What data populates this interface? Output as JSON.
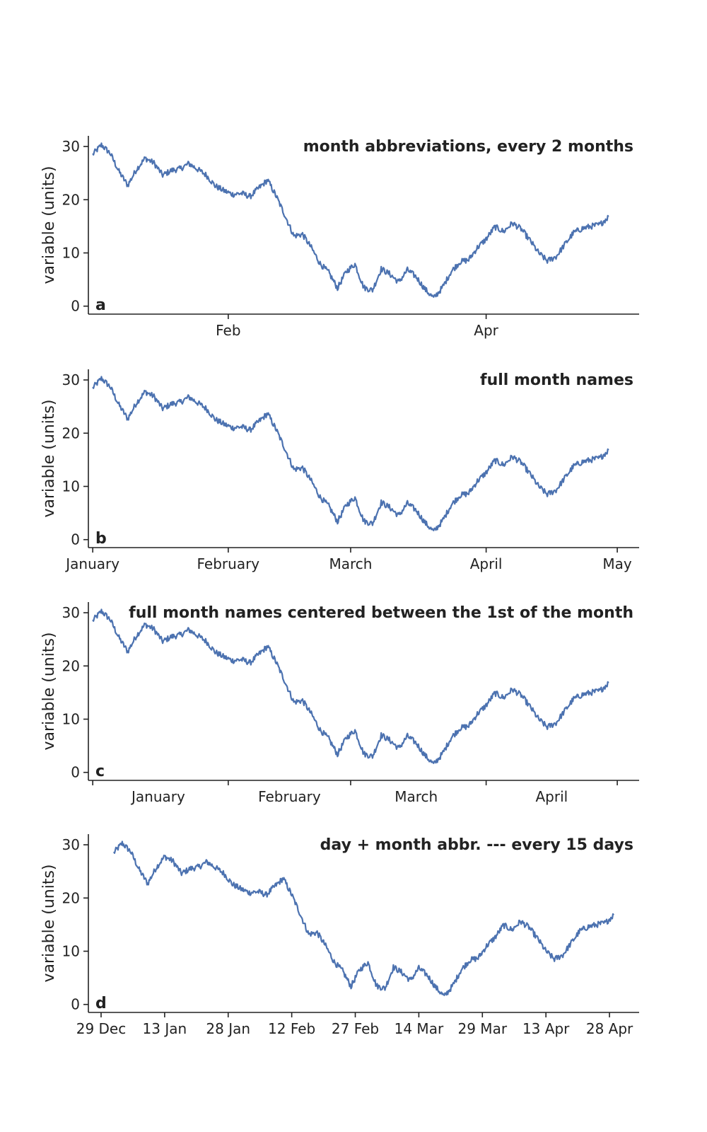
{
  "chart_data": [
    {
      "type": "line",
      "panel_letter": "a",
      "title": "month abbreviations, every 2 months",
      "xlabel": "",
      "ylabel": "variable (units)",
      "ylim": [
        -1.5,
        32
      ],
      "xlim": [
        "2018-12-31",
        "2019-05-06"
      ],
      "yticks": [
        0,
        10,
        20,
        30
      ],
      "xticks": [
        {
          "date": "2019-02-01",
          "label": "Feb"
        },
        {
          "date": "2019-04-01",
          "label": "Apr"
        }
      ],
      "grid": false,
      "color": "#4c72b0"
    },
    {
      "type": "line",
      "panel_letter": "b",
      "title": "full month names",
      "xlabel": "",
      "ylabel": "variable (units)",
      "ylim": [
        -1.5,
        32
      ],
      "xlim": [
        "2018-12-31",
        "2019-05-06"
      ],
      "yticks": [
        0,
        10,
        20,
        30
      ],
      "xticks": [
        {
          "date": "2019-01-01",
          "label": "January"
        },
        {
          "date": "2019-02-01",
          "label": "February"
        },
        {
          "date": "2019-03-01",
          "label": "March"
        },
        {
          "date": "2019-04-01",
          "label": "April"
        },
        {
          "date": "2019-05-01",
          "label": "May"
        }
      ],
      "grid": false,
      "color": "#4c72b0"
    },
    {
      "type": "line",
      "panel_letter": "c",
      "title": "full month names centered between the 1st of the month",
      "xlabel": "",
      "ylabel": "variable (units)",
      "ylim": [
        -1.5,
        32
      ],
      "xlim": [
        "2018-12-31",
        "2019-05-06"
      ],
      "yticks": [
        0,
        10,
        20,
        30
      ],
      "xticks": [
        {
          "date": "2019-01-01",
          "label": ""
        },
        {
          "date": "2019-02-01",
          "label": ""
        },
        {
          "date": "2019-03-01",
          "label": ""
        },
        {
          "date": "2019-04-01",
          "label": ""
        },
        {
          "date": "2019-05-01",
          "label": ""
        }
      ],
      "centered_labels": [
        {
          "date": "2019-01-16",
          "label": "January"
        },
        {
          "date": "2019-02-15",
          "label": "February"
        },
        {
          "date": "2019-03-16",
          "label": "March"
        },
        {
          "date": "2019-04-16",
          "label": "April"
        }
      ],
      "grid": false,
      "color": "#4c72b0"
    },
    {
      "type": "line",
      "panel_letter": "d",
      "title": "day + month abbr. --- every 15 days",
      "xlabel": "",
      "ylabel": "variable (units)",
      "ylim": [
        -1.5,
        32
      ],
      "xlim": [
        "2018-12-26",
        "2019-05-05"
      ],
      "yticks": [
        0,
        10,
        20,
        30
      ],
      "xticks": [
        {
          "date": "2018-12-29",
          "label": "29 Dec"
        },
        {
          "date": "2019-01-13",
          "label": "13 Jan"
        },
        {
          "date": "2019-01-28",
          "label": "28 Jan"
        },
        {
          "date": "2019-02-12",
          "label": "12 Feb"
        },
        {
          "date": "2019-02-27",
          "label": "27 Feb"
        },
        {
          "date": "2019-03-14",
          "label": "14 Mar"
        },
        {
          "date": "2019-03-29",
          "label": "29 Mar"
        },
        {
          "date": "2019-04-13",
          "label": "13 Apr"
        },
        {
          "date": "2019-04-28",
          "label": "28 Apr"
        }
      ],
      "grid": false,
      "color": "#4c72b0"
    }
  ],
  "series": {
    "x": [
      "2019-01-01",
      "2019-01-03",
      "2019-01-05",
      "2019-01-07",
      "2019-01-09",
      "2019-01-11",
      "2019-01-13",
      "2019-01-15",
      "2019-01-17",
      "2019-01-19",
      "2019-01-21",
      "2019-01-23",
      "2019-01-25",
      "2019-01-27",
      "2019-01-29",
      "2019-01-31",
      "2019-02-02",
      "2019-02-04",
      "2019-02-06",
      "2019-02-08",
      "2019-02-10",
      "2019-02-12",
      "2019-02-14",
      "2019-02-16",
      "2019-02-18",
      "2019-02-20",
      "2019-02-22",
      "2019-02-24",
      "2019-02-26",
      "2019-02-28",
      "2019-03-02",
      "2019-03-04",
      "2019-03-06",
      "2019-03-08",
      "2019-03-10",
      "2019-03-12",
      "2019-03-14",
      "2019-03-16",
      "2019-03-18",
      "2019-03-20",
      "2019-03-22",
      "2019-03-24",
      "2019-03-26",
      "2019-03-28",
      "2019-03-30",
      "2019-04-01",
      "2019-04-03",
      "2019-04-05",
      "2019-04-07",
      "2019-04-09",
      "2019-04-11",
      "2019-04-13",
      "2019-04-15",
      "2019-04-17",
      "2019-04-19",
      "2019-04-21",
      "2019-04-23",
      "2019-04-25",
      "2019-04-27",
      "2019-04-29"
    ],
    "y": [
      28.5,
      30.3,
      28.7,
      25.3,
      22.7,
      25.7,
      27.8,
      26.9,
      24.6,
      25.5,
      25.8,
      26.8,
      25.7,
      24.6,
      22.6,
      21.7,
      21.0,
      21.2,
      20.6,
      22.2,
      23.7,
      20.6,
      17.0,
      13.2,
      13.5,
      11.0,
      8.0,
      6.3,
      3.4,
      6.5,
      7.9,
      3.5,
      3.0,
      7.0,
      6.0,
      4.5,
      6.8,
      5.5,
      3.2,
      1.5,
      3.5,
      6.5,
      8.3,
      8.7,
      11.0,
      12.6,
      14.9,
      14.0,
      15.6,
      14.5,
      12.4,
      10.0,
      8.5,
      9.3,
      11.6,
      13.8,
      14.6,
      15.0,
      15.3,
      16.8
    ]
  }
}
